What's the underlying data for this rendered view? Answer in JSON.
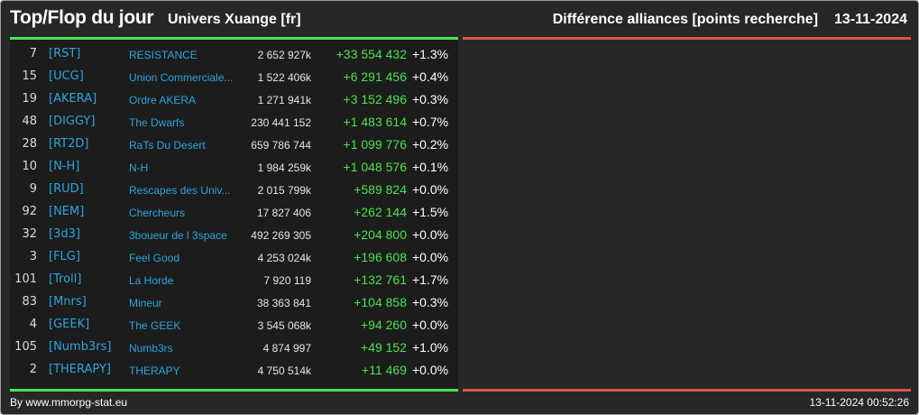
{
  "header": {
    "title": "Top/Flop du jour",
    "universe": "Univers Xuange [fr]",
    "metric": "Différence alliances [points recherche]",
    "date": "13-11-2024"
  },
  "colors": {
    "gain": "#4ee24e",
    "loss": "#d9534f",
    "tag_link": "#2fa4de",
    "background": "#272727"
  },
  "rows": [
    {
      "rank": "7",
      "tag": "[RST]",
      "name": "RESISTANCE",
      "points": "2 652 927k",
      "diff": "+33 554 432",
      "pct": "+1.3%"
    },
    {
      "rank": "15",
      "tag": "[UCG]",
      "name": "Union Commerciale...",
      "points": "1 522 406k",
      "diff": "+6 291 456",
      "pct": "+0.4%"
    },
    {
      "rank": "19",
      "tag": "[AKERA]",
      "name": "Ordre AKERA",
      "points": "1 271 941k",
      "diff": "+3 152 496",
      "pct": "+0.3%"
    },
    {
      "rank": "48",
      "tag": "[DIGGY]",
      "name": "The Dwarfs",
      "points": "230 441 152",
      "diff": "+1 483 614",
      "pct": "+0.7%"
    },
    {
      "rank": "28",
      "tag": "[RT2D]",
      "name": "RaTs Du Desert",
      "points": "659 786 744",
      "diff": "+1 099 776",
      "pct": "+0.2%"
    },
    {
      "rank": "10",
      "tag": "[N-H]",
      "name": "N-H",
      "points": "1 984 259k",
      "diff": "+1 048 576",
      "pct": "+0.1%"
    },
    {
      "rank": "9",
      "tag": "[RUD]",
      "name": "Rescapes des Univ...",
      "points": "2 015 799k",
      "diff": "+589 824",
      "pct": "+0.0%"
    },
    {
      "rank": "92",
      "tag": "[NEM]",
      "name": "Chercheurs",
      "points": "17 827 406",
      "diff": "+262 144",
      "pct": "+1.5%"
    },
    {
      "rank": "32",
      "tag": "[3d3]",
      "name": "3boueur de l 3space",
      "points": "492 269 305",
      "diff": "+204 800",
      "pct": "+0.0%"
    },
    {
      "rank": "3",
      "tag": "[FLG]",
      "name": "Feel Good",
      "points": "4 253 024k",
      "diff": "+196 608",
      "pct": "+0.0%"
    },
    {
      "rank": "101",
      "tag": "[Troll]",
      "name": "La Horde",
      "points": "7 920 119",
      "diff": "+132 761",
      "pct": "+1.7%"
    },
    {
      "rank": "83",
      "tag": "[Mnrs]",
      "name": "Mineur",
      "points": "38 363 841",
      "diff": "+104 858",
      "pct": "+0.3%"
    },
    {
      "rank": "4",
      "tag": "[GEEK]",
      "name": "The GEEK",
      "points": "3 545 068k",
      "diff": "+94 260",
      "pct": "+0.0%"
    },
    {
      "rank": "105",
      "tag": "[Numb3rs]",
      "name": "Numb3rs",
      "points": "4 874 997",
      "diff": "+49 152",
      "pct": "+1.0%"
    },
    {
      "rank": "2",
      "tag": "[THERAPY]",
      "name": "THERAPY",
      "points": "4 750 514k",
      "diff": "+11 469",
      "pct": "+0.0%"
    }
  ],
  "footer": {
    "credit": "By www.mmorpg-stat.eu",
    "timestamp": "13-11-2024 00:52:26"
  }
}
